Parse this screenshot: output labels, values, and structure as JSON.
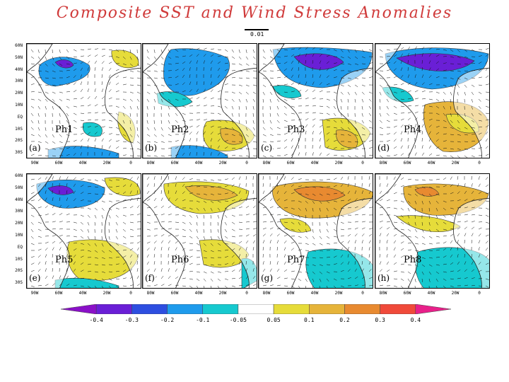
{
  "title": "Composite SST and Wind Stress Anomalies",
  "reference_vector": {
    "label": "0.01"
  },
  "y_axis_labels": [
    "60N",
    "50N",
    "40N",
    "30N",
    "20N",
    "10N",
    "EQ",
    "10S",
    "20S",
    "30S"
  ],
  "panels": [
    {
      "letter": "(a)",
      "phase": "Ph1",
      "x_labels": [
        "90W",
        "60W",
        "40W",
        "20W",
        "0"
      ]
    },
    {
      "letter": "(b)",
      "phase": "Ph2",
      "x_labels": [
        "80W",
        "60W",
        "40W",
        "20W",
        "0"
      ]
    },
    {
      "letter": "(c)",
      "phase": "Ph3",
      "x_labels": [
        "80W",
        "60W",
        "40W",
        "20W",
        "0"
      ]
    },
    {
      "letter": "(d)",
      "phase": "Ph4",
      "x_labels": [
        "80W",
        "60W",
        "40W",
        "20W",
        "0"
      ]
    },
    {
      "letter": "(e)",
      "phase": "Ph5",
      "x_labels": [
        "90W",
        "60W",
        "40W",
        "20W",
        "0"
      ]
    },
    {
      "letter": "(f)",
      "phase": "Ph6",
      "x_labels": [
        "80W",
        "60W",
        "40W",
        "20W",
        "0"
      ]
    },
    {
      "letter": "(g)",
      "phase": "Ph7",
      "x_labels": [
        "80W",
        "60W",
        "40W",
        "20W",
        "0"
      ]
    },
    {
      "letter": "(h)",
      "phase": "Ph8",
      "x_labels": [
        "80W",
        "60W",
        "40W",
        "20W",
        "0"
      ]
    }
  ],
  "colorbar": {
    "labels": [
      "-0.4",
      "-0.3",
      "-0.2",
      "-0.1",
      "-0.05",
      "0.05",
      "0.1",
      "0.2",
      "0.3",
      "0.4"
    ],
    "colors": [
      "#8a10c8",
      "#6a1fd6",
      "#2d4ee0",
      "#1f9bec",
      "#16c9cf",
      "#ffffff",
      "#e6dc3a",
      "#e6b43a",
      "#e88a30",
      "#f04a3a",
      "#e8208a"
    ]
  },
  "colors": {
    "land": "#ffffff",
    "ocean_blue": "#1f9bec",
    "ocean_cyan": "#16c9cf",
    "ocean_purple": "#6a1fd6",
    "ocean_yellow": "#e6dc3a",
    "ocean_orange": "#e6b43a",
    "ocean_red": "#e88a30"
  }
}
